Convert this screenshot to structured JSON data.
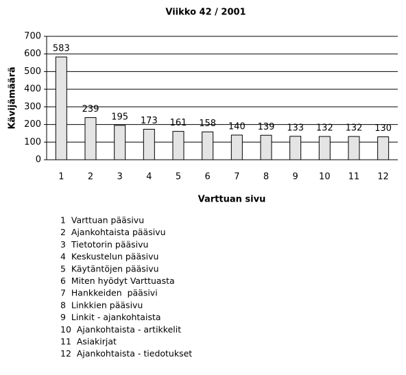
{
  "chart_data": {
    "type": "bar",
    "title": "Viikko 42 / 2001",
    "x_label": "Varttuan sivu",
    "y_label": "Kävijämäärä",
    "categories": [
      "1",
      "2",
      "3",
      "4",
      "5",
      "6",
      "7",
      "8",
      "9",
      "10",
      "11",
      "12"
    ],
    "values": [
      583,
      239,
      195,
      173,
      161,
      158,
      140,
      139,
      133,
      132,
      132,
      130
    ],
    "color": "#e4e4e4",
    "ylim": [
      0,
      700
    ],
    "yticks": [
      0,
      100,
      200,
      300,
      400,
      500,
      600,
      700
    ],
    "grid": true,
    "annotations": [
      "1  Varttuan pääsivu",
      "2  Ajankohtaista pääsivu",
      "3  Tietotorin pääsivu",
      "4  Keskustelun pääsivu",
      "5  Käytäntöjen pääsivu",
      "6  Miten hyödyt Varttuasta",
      "7  Hankkeiden  pääsivi",
      "8  Linkkien pääsivu",
      "9  Linkit - ajankohtaista",
      "10  Ajankohtaista - artikkelit",
      "11  Asiakirjat",
      "12  Ajankohtaista - tiedotukset"
    ]
  }
}
